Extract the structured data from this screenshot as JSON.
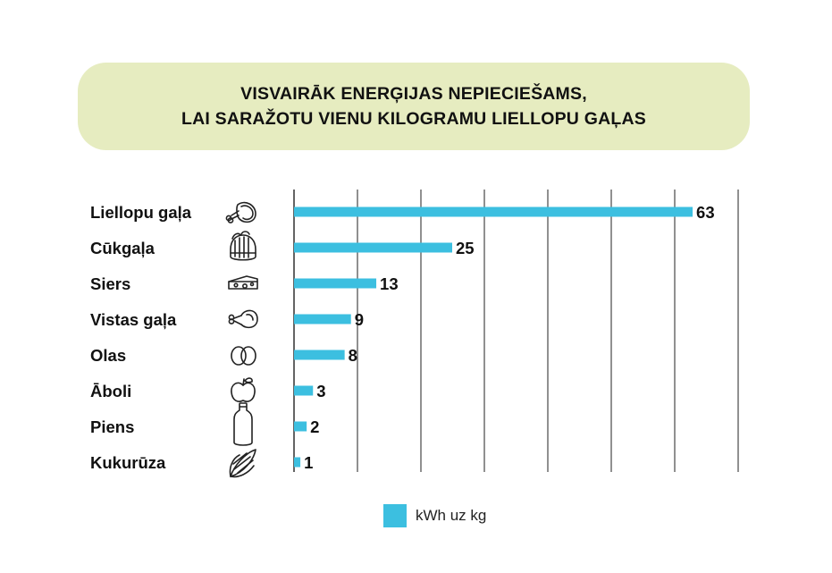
{
  "title": {
    "line1": "VISVAIRĀK ENERĢIJAS NEPIECIEŠAMS,",
    "line2": "LAI SARAŽOTU VIENU KILOGRAMU LIELLOPU GAĻAS"
  },
  "legend": {
    "label": "kWh uz kg"
  },
  "colors": {
    "bar": "#3cbfe0",
    "grid": "#222222",
    "text": "#111111"
  },
  "chart_data": {
    "type": "bar",
    "orientation": "horizontal",
    "title": "VISVAIRĀK ENERĢIJAS NEPIECIEŠAMS, LAI SARAŽOTU VIENU KILOGRAMU LIELLOPU GAĻAS",
    "categories": [
      "Liellopu gaļa",
      "Cūkgaļa",
      "Siers",
      "Vistas gaļa",
      "Olas",
      "Āboli",
      "Piens",
      "Kukurūza"
    ],
    "icons": [
      "meat-leg-icon",
      "pork-ribs-icon",
      "cheese-icon",
      "chicken-leg-icon",
      "eggs-icon",
      "apple-icon",
      "milk-bottle-icon",
      "corn-icon"
    ],
    "series": [
      {
        "name": "kWh uz kg",
        "values": [
          63,
          25,
          13,
          9,
          8,
          3,
          2,
          1
        ]
      }
    ],
    "xlim": [
      0,
      70
    ],
    "grid": true,
    "legend_position": "bottom-center",
    "xlabel": "",
    "ylabel": ""
  }
}
